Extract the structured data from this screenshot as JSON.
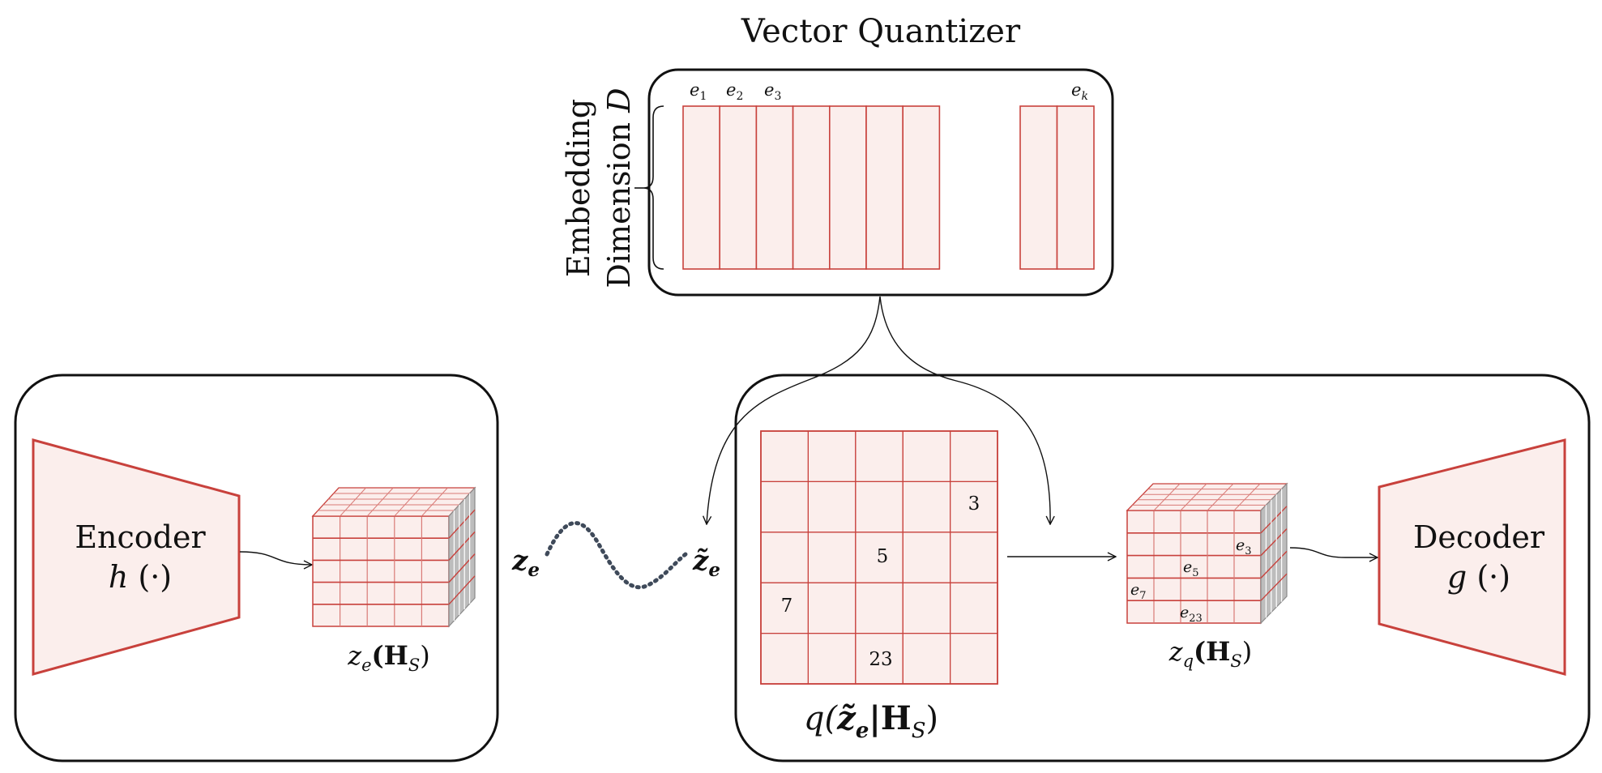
{
  "vector_quantizer": {
    "title": "Vector Quantizer",
    "dim_label_line1": "Embedding",
    "dim_label_line2": "Dimension ",
    "dim_symbol": "D",
    "codebook": [
      {
        "base": "e",
        "sub": "1"
      },
      {
        "base": "e",
        "sub": "2"
      },
      {
        "base": "e",
        "sub": "3"
      },
      {
        "base": "e",
        "sub": "k"
      }
    ]
  },
  "encoder": {
    "line1": "Encoder",
    "line2_fn": "h",
    "line2_arg": " (·)",
    "output_label": {
      "base": "z",
      "sub": "e",
      "arg": "(H",
      "arg_sub": "S",
      "close": ")"
    }
  },
  "link": {
    "left": {
      "base": "z",
      "sub": "e"
    },
    "right": {
      "base": "z̃",
      "sub": "e"
    }
  },
  "quantization": {
    "grid_values": [
      "3",
      "5",
      "7",
      "23"
    ],
    "label": {
      "prefix": "q(",
      "base": "z̃",
      "sub": "e",
      "mid": "|H",
      "mid_sub": "S",
      "close": ")"
    }
  },
  "quantized_cube": {
    "cell_labels": [
      {
        "base": "e",
        "sub": "3"
      },
      {
        "base": "e",
        "sub": "5"
      },
      {
        "base": "e",
        "sub": "7"
      },
      {
        "base": "e",
        "sub": "23"
      }
    ],
    "output_label": {
      "base": "z",
      "sub": "q",
      "arg": "(H",
      "arg_sub": "S",
      "close": ")"
    }
  },
  "decoder": {
    "line1": "Decoder",
    "line2_fn": "g",
    "line2_arg": " (·)"
  },
  "colors": {
    "accent": "#c8413c",
    "fill": "#fbeeec",
    "cell_line": "#d97a76",
    "side": "#bdbdbd",
    "dots": "#3f4a5a",
    "frame": "#111111"
  }
}
